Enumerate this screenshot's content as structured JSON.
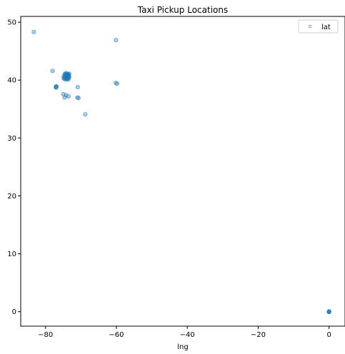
{
  "chart_data": {
    "type": "scatter",
    "title": "Taxi Pickup Locations",
    "xlabel": "lng",
    "ylabel": "",
    "xlim": [
      -87,
      4.5
    ],
    "ylim": [
      -2.5,
      51
    ],
    "xticks": [
      -80,
      -60,
      -40,
      -20,
      0
    ],
    "yticks": [
      0,
      10,
      20,
      30,
      40,
      50
    ],
    "grid": false,
    "legend_position": "top-right",
    "series": [
      {
        "name": "lat",
        "color": "#1f77b4",
        "points": [
          [
            -83.3,
            48.3
          ],
          [
            -60.1,
            46.9
          ],
          [
            -78.0,
            41.6
          ],
          [
            -74.5,
            41.1
          ],
          [
            -74.2,
            41.2
          ],
          [
            -73.9,
            41.1
          ],
          [
            -73.6,
            41.0
          ],
          [
            -73.3,
            41.1
          ],
          [
            -74.8,
            40.8
          ],
          [
            -74.4,
            40.9
          ],
          [
            -74.0,
            40.8
          ],
          [
            -73.7,
            40.9
          ],
          [
            -73.4,
            40.8
          ],
          [
            -74.6,
            40.6
          ],
          [
            -74.2,
            40.6
          ],
          [
            -73.9,
            40.7
          ],
          [
            -73.6,
            40.6
          ],
          [
            -73.3,
            40.5
          ],
          [
            -74.9,
            40.4
          ],
          [
            -74.5,
            40.4
          ],
          [
            -74.1,
            40.5
          ],
          [
            -73.8,
            40.4
          ],
          [
            -73.5,
            40.3
          ],
          [
            -74.7,
            40.2
          ],
          [
            -74.3,
            40.1
          ],
          [
            -73.9,
            40.2
          ],
          [
            -73.6,
            40.1
          ],
          [
            -73.8,
            40.75
          ],
          [
            -74.0,
            40.6
          ],
          [
            -73.95,
            40.7
          ],
          [
            -74.1,
            40.8
          ],
          [
            -73.7,
            40.5
          ],
          [
            -77.0,
            38.9
          ],
          [
            -77.1,
            38.8
          ],
          [
            -76.9,
            38.9
          ],
          [
            -77.0,
            38.7
          ],
          [
            -70.9,
            38.8
          ],
          [
            -60.2,
            39.5
          ],
          [
            -59.8,
            39.4
          ],
          [
            -75.0,
            37.6
          ],
          [
            -74.2,
            37.4
          ],
          [
            -73.5,
            37.2
          ],
          [
            -74.6,
            37.0
          ],
          [
            -71.0,
            37.0
          ],
          [
            -70.7,
            36.9
          ],
          [
            -68.8,
            34.1
          ],
          [
            0.0,
            0.0
          ],
          [
            0.05,
            0.05
          ],
          [
            -0.05,
            -0.05
          ],
          [
            0.02,
            -0.03
          ],
          [
            -0.03,
            0.04
          ]
        ]
      }
    ]
  }
}
